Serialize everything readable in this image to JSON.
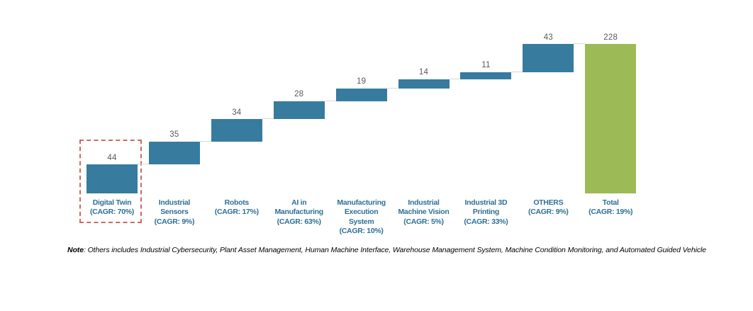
{
  "chart_data": {
    "type": "bar",
    "subtype": "waterfall",
    "title": "",
    "xlabel": "",
    "ylabel": "",
    "ylim": [
      0,
      228
    ],
    "grid": false,
    "legend": false,
    "categories": [
      "Digital Twin",
      "Industrial Sensors",
      "Robots",
      "AI in Manufacturing",
      "Manufacturing Execution System",
      "Industrial Machine Vision",
      "Industrial 3D Printing",
      "OTHERS",
      "Total"
    ],
    "values": [
      44,
      35,
      34,
      28,
      19,
      14,
      11,
      43,
      228
    ],
    "segments": [
      {
        "label_lines": [
          "Digital Twin",
          "(CAGR: 70%)"
        ],
        "value": 44,
        "cagr": "70%",
        "is_total": false,
        "highlighted": true
      },
      {
        "label_lines": [
          "Industrial",
          "Sensors",
          "(CAGR: 9%)"
        ],
        "value": 35,
        "cagr": "9%",
        "is_total": false,
        "highlighted": false
      },
      {
        "label_lines": [
          "Robots",
          "(CAGR: 17%)"
        ],
        "value": 34,
        "cagr": "17%",
        "is_total": false,
        "highlighted": false
      },
      {
        "label_lines": [
          "AI in",
          "Manufacturing",
          "(CAGR: 63%)"
        ],
        "value": 28,
        "cagr": "63%",
        "is_total": false,
        "highlighted": false
      },
      {
        "label_lines": [
          "Manufacturing",
          "Execution",
          "System",
          "(CAGR: 10%)"
        ],
        "value": 19,
        "cagr": "10%",
        "is_total": false,
        "highlighted": false
      },
      {
        "label_lines": [
          "Industrial",
          "Machine Vision",
          "(CAGR: 5%)"
        ],
        "value": 14,
        "cagr": "5%",
        "is_total": false,
        "highlighted": false
      },
      {
        "label_lines": [
          "Industrial 3D",
          "Printing",
          "(CAGR: 33%)"
        ],
        "value": 11,
        "cagr": "33%",
        "is_total": false,
        "highlighted": false
      },
      {
        "label_lines": [
          "OTHERS",
          "(CAGR: 9%)"
        ],
        "value": 43,
        "cagr": "9%",
        "is_total": false,
        "highlighted": false
      },
      {
        "label_lines": [
          "Total",
          "(CAGR: 19%)"
        ],
        "value": 228,
        "cagr": "19%",
        "is_total": true,
        "highlighted": false
      }
    ],
    "colors": {
      "segment": "#377B9F",
      "total": "#9CBA55",
      "connector": "#D9D9D9",
      "value_label": "#595959",
      "category_label": "#2E7096",
      "highlight_border": "#C96B62"
    }
  },
  "note": {
    "prefix": "Note",
    "text": ": Others includes Industrial Cybersecurity, Plant Asset Management, Human Machine Interface, Warehouse Management System, Machine Condition Monitoring, and Automated Guided Vehicle"
  }
}
